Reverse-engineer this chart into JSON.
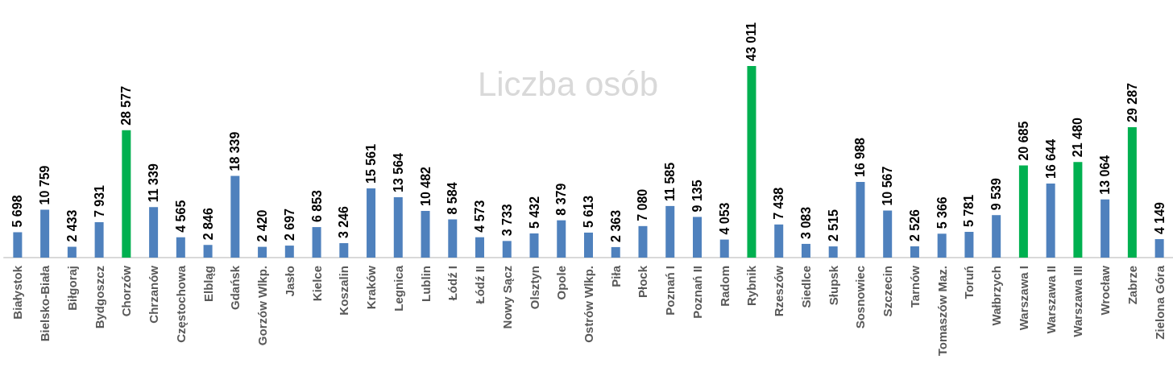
{
  "chart_data": {
    "type": "bar",
    "title": "Liczba osób",
    "categories": [
      "Białystok",
      "Bielsko-Biała",
      "Biłgoraj",
      "Bydgoszcz",
      "Chorzów",
      "Chrzanów",
      "Częstochowa",
      "Elbląg",
      "Gdańsk",
      "Gorzów Wlkp.",
      "Jasło",
      "Kielce",
      "Koszalin",
      "Kraków",
      "Legnica",
      "Lublin",
      "Łódź I",
      "Łódź II",
      "Nowy Sącz",
      "Olsztyn",
      "Opole",
      "Ostrów Wlkp.",
      "Piła",
      "Płock",
      "Poznań I",
      "Poznań II",
      "Radom",
      "Rybnik",
      "Rzeszów",
      "Siedlce",
      "Słupsk",
      "Sosnowiec",
      "Szczecin",
      "Tarnów",
      "Tomaszów Maz.",
      "Toruń",
      "Wałbrzych",
      "Warszawa I",
      "Warszawa II",
      "Warszawa III",
      "Wrocław",
      "Zabrze",
      "Zielona Góra"
    ],
    "values": [
      5698,
      10759,
      2433,
      7931,
      28577,
      11339,
      4565,
      2846,
      18339,
      2420,
      2697,
      6853,
      3246,
      15561,
      13564,
      10482,
      8584,
      4573,
      3733,
      5432,
      8379,
      5613,
      2363,
      7080,
      11585,
      9135,
      4053,
      43011,
      7438,
      3083,
      2515,
      16988,
      10567,
      2526,
      5366,
      5781,
      9539,
      20685,
      16644,
      21480,
      13064,
      29287,
      4149
    ],
    "value_labels": [
      "5 698",
      "10 759",
      "2 433",
      "7 931",
      "28 577",
      "11 339",
      "4 565",
      "2 846",
      "18 339",
      "2 420",
      "2 697",
      "6 853",
      "3 246",
      "15 561",
      "13 564",
      "10 482",
      "8 584",
      "4 573",
      "3 733",
      "5 432",
      "8 379",
      "5 613",
      "2 363",
      "7 080",
      "11 585",
      "9 135",
      "4 053",
      "43 011",
      "7 438",
      "3 083",
      "2 515",
      "16 988",
      "10 567",
      "2 526",
      "5 366",
      "5 781",
      "9 539",
      "20 685",
      "16 644",
      "21 480",
      "13 064",
      "29 287",
      "4 149"
    ],
    "colors": [
      "#4f81bd",
      "#4f81bd",
      "#4f81bd",
      "#4f81bd",
      "#00b050",
      "#4f81bd",
      "#4f81bd",
      "#4f81bd",
      "#4f81bd",
      "#4f81bd",
      "#4f81bd",
      "#4f81bd",
      "#4f81bd",
      "#4f81bd",
      "#4f81bd",
      "#4f81bd",
      "#4f81bd",
      "#4f81bd",
      "#4f81bd",
      "#4f81bd",
      "#4f81bd",
      "#4f81bd",
      "#4f81bd",
      "#4f81bd",
      "#4f81bd",
      "#4f81bd",
      "#4f81bd",
      "#00b050",
      "#4f81bd",
      "#4f81bd",
      "#4f81bd",
      "#4f81bd",
      "#4f81bd",
      "#4f81bd",
      "#4f81bd",
      "#4f81bd",
      "#4f81bd",
      "#00b050",
      "#4f81bd",
      "#00b050",
      "#4f81bd",
      "#00b050",
      "#4f81bd"
    ],
    "tick_labels": "x"
  }
}
